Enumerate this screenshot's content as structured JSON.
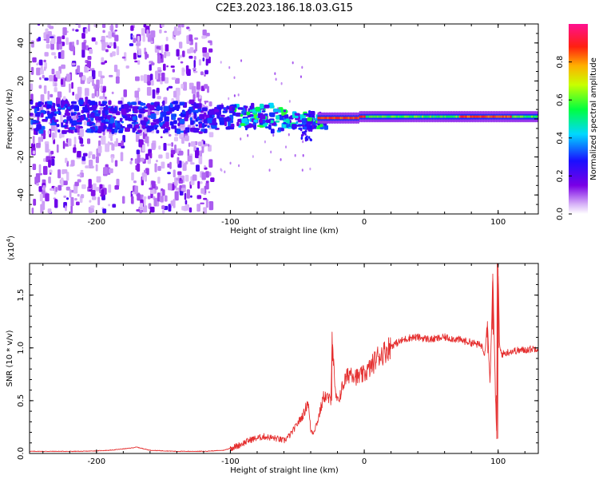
{
  "figure": {
    "title": "C2E3.2023.186.18.03.G15"
  },
  "colors": {
    "snr_line": "#e53030",
    "frame": "#000000",
    "background": "#ffffff"
  },
  "chart_data": [
    {
      "type": "heatmap",
      "title": "",
      "xlabel": "Height of straight line (km)",
      "ylabel": "Frequency (Hz)",
      "xlim": [
        -250,
        130
      ],
      "ylim": [
        -50,
        50
      ],
      "xticks": [
        -200,
        -100,
        0,
        100
      ],
      "yticks": [
        -40,
        -20,
        0,
        20,
        40
      ],
      "colorbar": {
        "label": "Normalized spectral amplitude",
        "range": [
          0.0,
          1.0
        ],
        "ticks": [
          0.0,
          0.2,
          0.4,
          0.6,
          0.8
        ],
        "colormap": "rainbow (white → violet → blue → cyan → green → yellow → orange → red → magenta)"
      },
      "grid": false,
      "features": [
        {
          "x_range": [
            -250,
            -120
          ],
          "y_range": [
            -50,
            50
          ],
          "amplitude": 0.15,
          "description": "broadband scattered violet noise"
        },
        {
          "x_range": [
            -250,
            -30
          ],
          "y_range": [
            -8,
            8
          ],
          "amplitude": 0.3,
          "description": "spectral band near 0 Hz"
        },
        {
          "x_range": [
            -100,
            -40
          ],
          "y_range": [
            -5,
            5
          ],
          "amplitude": 0.55,
          "description": "green/cyan blobs"
        },
        {
          "x_range": [
            -40,
            0
          ],
          "y_range": [
            -2,
            2
          ],
          "amplitude": 0.85,
          "description": "narrow red line"
        },
        {
          "x_range": [
            0,
            130
          ],
          "y_range": [
            -1,
            3
          ],
          "amplitude": 0.6,
          "description": "narrow carrier line at ~1 Hz"
        }
      ]
    },
    {
      "type": "line",
      "title": "",
      "xlabel": "Height of straight line (km)",
      "ylabel": "SNR (10 * v/v)",
      "y_scale_label": "(x10",
      "y_scale_exponent": "4",
      "y_scale_suffix": ")",
      "xlim": [
        -250,
        130
      ],
      "ylim": [
        0,
        1.8
      ],
      "xticks": [
        -200,
        -100,
        0,
        100
      ],
      "yticks": [
        0.0,
        0.5,
        1.0,
        1.5
      ],
      "ytick_labels": [
        "0.0",
        "0.5",
        "1.0",
        "1.5"
      ],
      "grid": false,
      "series": [
        {
          "x": [
            -250,
            -230,
            -210,
            -190,
            -175,
            -170,
            -160,
            -140,
            -120,
            -105,
            -95,
            -85,
            -75,
            -65,
            -60,
            -55,
            -50,
            -45,
            -42,
            -40,
            -38,
            -35,
            -30,
            -25,
            -24,
            -22,
            -20,
            -15,
            -10,
            -5,
            0,
            5,
            10,
            15,
            20,
            25,
            30,
            35,
            40,
            50,
            60,
            70,
            80,
            88,
            90,
            92,
            94,
            96,
            98,
            99,
            100,
            101,
            103,
            110,
            120,
            130
          ],
          "y": [
            0.02,
            0.02,
            0.02,
            0.03,
            0.05,
            0.06,
            0.03,
            0.02,
            0.02,
            0.03,
            0.07,
            0.13,
            0.16,
            0.14,
            0.12,
            0.18,
            0.28,
            0.38,
            0.5,
            0.22,
            0.2,
            0.3,
            0.55,
            0.5,
            1.15,
            0.6,
            0.48,
            0.68,
            0.78,
            0.72,
            0.75,
            0.82,
            0.92,
            0.96,
            1.02,
            1.05,
            1.08,
            1.1,
            1.1,
            1.08,
            1.1,
            1.08,
            1.05,
            1.02,
            0.95,
            1.25,
            0.65,
            1.7,
            0.55,
            0.14,
            1.8,
            1.0,
            0.94,
            0.97,
            0.98,
            1.0
          ]
        }
      ]
    }
  ]
}
